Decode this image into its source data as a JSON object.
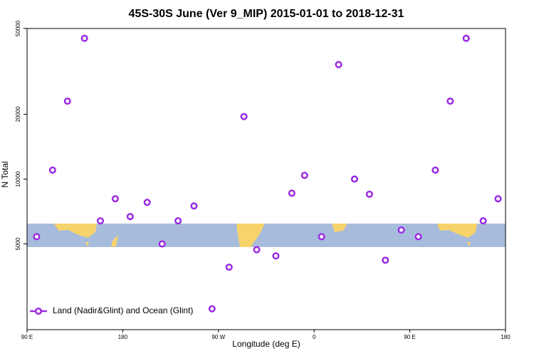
{
  "chart_data": {
    "type": "scatter",
    "title": "45S-30S June (Ver 9_MIP)   2015-01-01 to 2018-12-31",
    "x_label": "Longitude (deg E)",
    "y_label": "N Total",
    "x": [
      99,
      114,
      128,
      144,
      159,
      173,
      187,
      203,
      217,
      232,
      247,
      264,
      280,
      294,
      306,
      324,
      339,
      351,
      367,
      383,
      398,
      412,
      427,
      442,
      458,
      474,
      488,
      503,
      519,
      533
    ],
    "series": [
      {
        "name": "Land (Nadir&Glint) and Ocean (Glint)",
        "color": "#9a2be2",
        "values": [
          5400,
          11000,
          23000,
          45000,
          6400,
          8100,
          6700,
          7800,
          5000,
          6400,
          7500,
          2500,
          3900,
          19500,
          4700,
          4400,
          8600,
          10400,
          5400,
          34000,
          10000,
          8500,
          4200,
          5800,
          5400,
          11000,
          23000,
          45000,
          6400,
          8100
        ]
      }
    ],
    "xlim": [
      90,
      540
    ],
    "xticks": [
      {
        "value": 90,
        "label": "90 E"
      },
      180,
      {
        "value": 270,
        "label": "90 W"
      },
      {
        "value": 360,
        "label": "0"
      },
      {
        "value": 450,
        "label": "90 E"
      },
      {
        "value": 540,
        "label": "180"
      }
    ],
    "ylim": [
      2000,
      50000
    ],
    "yticks": [
      5000,
      10000,
      20000,
      50000
    ],
    "log_y": true,
    "legend": "lower left"
  }
}
